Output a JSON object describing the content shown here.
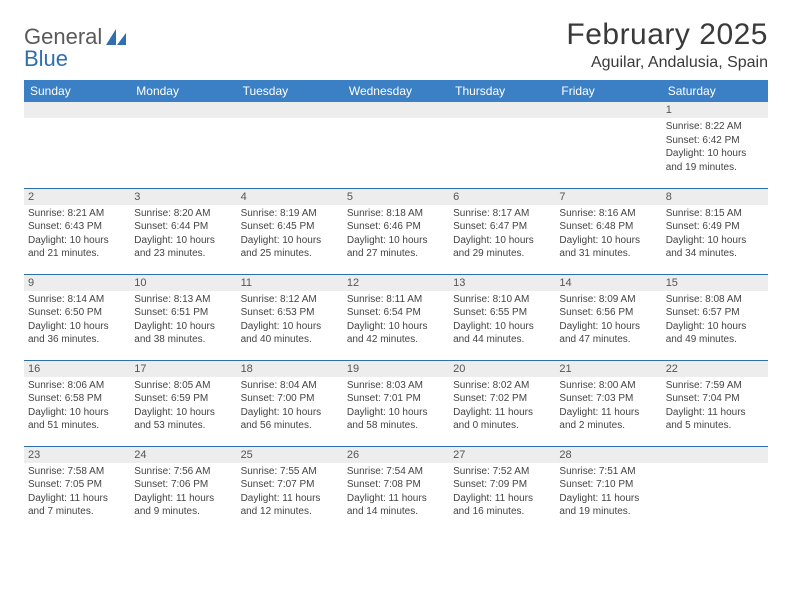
{
  "brand": {
    "word1": "General",
    "word2": "Blue"
  },
  "title": "February 2025",
  "location": "Aguilar, Andalusia, Spain",
  "colors": {
    "header_bg": "#3b7fc4",
    "header_text": "#ffffff",
    "daynum_bg": "#ededed",
    "row_border": "#2f6fb0",
    "brand_gray": "#5a5a5a",
    "brand_blue": "#2f6fb0"
  },
  "weekdays": [
    "Sunday",
    "Monday",
    "Tuesday",
    "Wednesday",
    "Thursday",
    "Friday",
    "Saturday"
  ],
  "weeks": [
    [
      {
        "n": "",
        "sunrise": "",
        "sunset": "",
        "daylight": ""
      },
      {
        "n": "",
        "sunrise": "",
        "sunset": "",
        "daylight": ""
      },
      {
        "n": "",
        "sunrise": "",
        "sunset": "",
        "daylight": ""
      },
      {
        "n": "",
        "sunrise": "",
        "sunset": "",
        "daylight": ""
      },
      {
        "n": "",
        "sunrise": "",
        "sunset": "",
        "daylight": ""
      },
      {
        "n": "",
        "sunrise": "",
        "sunset": "",
        "daylight": ""
      },
      {
        "n": "1",
        "sunrise": "Sunrise: 8:22 AM",
        "sunset": "Sunset: 6:42 PM",
        "daylight": "Daylight: 10 hours and 19 minutes."
      }
    ],
    [
      {
        "n": "2",
        "sunrise": "Sunrise: 8:21 AM",
        "sunset": "Sunset: 6:43 PM",
        "daylight": "Daylight: 10 hours and 21 minutes."
      },
      {
        "n": "3",
        "sunrise": "Sunrise: 8:20 AM",
        "sunset": "Sunset: 6:44 PM",
        "daylight": "Daylight: 10 hours and 23 minutes."
      },
      {
        "n": "4",
        "sunrise": "Sunrise: 8:19 AM",
        "sunset": "Sunset: 6:45 PM",
        "daylight": "Daylight: 10 hours and 25 minutes."
      },
      {
        "n": "5",
        "sunrise": "Sunrise: 8:18 AM",
        "sunset": "Sunset: 6:46 PM",
        "daylight": "Daylight: 10 hours and 27 minutes."
      },
      {
        "n": "6",
        "sunrise": "Sunrise: 8:17 AM",
        "sunset": "Sunset: 6:47 PM",
        "daylight": "Daylight: 10 hours and 29 minutes."
      },
      {
        "n": "7",
        "sunrise": "Sunrise: 8:16 AM",
        "sunset": "Sunset: 6:48 PM",
        "daylight": "Daylight: 10 hours and 31 minutes."
      },
      {
        "n": "8",
        "sunrise": "Sunrise: 8:15 AM",
        "sunset": "Sunset: 6:49 PM",
        "daylight": "Daylight: 10 hours and 34 minutes."
      }
    ],
    [
      {
        "n": "9",
        "sunrise": "Sunrise: 8:14 AM",
        "sunset": "Sunset: 6:50 PM",
        "daylight": "Daylight: 10 hours and 36 minutes."
      },
      {
        "n": "10",
        "sunrise": "Sunrise: 8:13 AM",
        "sunset": "Sunset: 6:51 PM",
        "daylight": "Daylight: 10 hours and 38 minutes."
      },
      {
        "n": "11",
        "sunrise": "Sunrise: 8:12 AM",
        "sunset": "Sunset: 6:53 PM",
        "daylight": "Daylight: 10 hours and 40 minutes."
      },
      {
        "n": "12",
        "sunrise": "Sunrise: 8:11 AM",
        "sunset": "Sunset: 6:54 PM",
        "daylight": "Daylight: 10 hours and 42 minutes."
      },
      {
        "n": "13",
        "sunrise": "Sunrise: 8:10 AM",
        "sunset": "Sunset: 6:55 PM",
        "daylight": "Daylight: 10 hours and 44 minutes."
      },
      {
        "n": "14",
        "sunrise": "Sunrise: 8:09 AM",
        "sunset": "Sunset: 6:56 PM",
        "daylight": "Daylight: 10 hours and 47 minutes."
      },
      {
        "n": "15",
        "sunrise": "Sunrise: 8:08 AM",
        "sunset": "Sunset: 6:57 PM",
        "daylight": "Daylight: 10 hours and 49 minutes."
      }
    ],
    [
      {
        "n": "16",
        "sunrise": "Sunrise: 8:06 AM",
        "sunset": "Sunset: 6:58 PM",
        "daylight": "Daylight: 10 hours and 51 minutes."
      },
      {
        "n": "17",
        "sunrise": "Sunrise: 8:05 AM",
        "sunset": "Sunset: 6:59 PM",
        "daylight": "Daylight: 10 hours and 53 minutes."
      },
      {
        "n": "18",
        "sunrise": "Sunrise: 8:04 AM",
        "sunset": "Sunset: 7:00 PM",
        "daylight": "Daylight: 10 hours and 56 minutes."
      },
      {
        "n": "19",
        "sunrise": "Sunrise: 8:03 AM",
        "sunset": "Sunset: 7:01 PM",
        "daylight": "Daylight: 10 hours and 58 minutes."
      },
      {
        "n": "20",
        "sunrise": "Sunrise: 8:02 AM",
        "sunset": "Sunset: 7:02 PM",
        "daylight": "Daylight: 11 hours and 0 minutes."
      },
      {
        "n": "21",
        "sunrise": "Sunrise: 8:00 AM",
        "sunset": "Sunset: 7:03 PM",
        "daylight": "Daylight: 11 hours and 2 minutes."
      },
      {
        "n": "22",
        "sunrise": "Sunrise: 7:59 AM",
        "sunset": "Sunset: 7:04 PM",
        "daylight": "Daylight: 11 hours and 5 minutes."
      }
    ],
    [
      {
        "n": "23",
        "sunrise": "Sunrise: 7:58 AM",
        "sunset": "Sunset: 7:05 PM",
        "daylight": "Daylight: 11 hours and 7 minutes."
      },
      {
        "n": "24",
        "sunrise": "Sunrise: 7:56 AM",
        "sunset": "Sunset: 7:06 PM",
        "daylight": "Daylight: 11 hours and 9 minutes."
      },
      {
        "n": "25",
        "sunrise": "Sunrise: 7:55 AM",
        "sunset": "Sunset: 7:07 PM",
        "daylight": "Daylight: 11 hours and 12 minutes."
      },
      {
        "n": "26",
        "sunrise": "Sunrise: 7:54 AM",
        "sunset": "Sunset: 7:08 PM",
        "daylight": "Daylight: 11 hours and 14 minutes."
      },
      {
        "n": "27",
        "sunrise": "Sunrise: 7:52 AM",
        "sunset": "Sunset: 7:09 PM",
        "daylight": "Daylight: 11 hours and 16 minutes."
      },
      {
        "n": "28",
        "sunrise": "Sunrise: 7:51 AM",
        "sunset": "Sunset: 7:10 PM",
        "daylight": "Daylight: 11 hours and 19 minutes."
      },
      {
        "n": "",
        "sunrise": "",
        "sunset": "",
        "daylight": ""
      }
    ]
  ]
}
